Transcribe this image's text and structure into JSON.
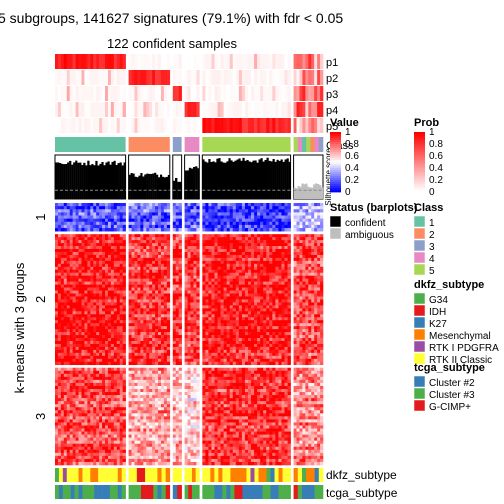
{
  "chart_data": {
    "type": "heatmap",
    "title": "5 subgroups, 141627 signatures (79.1%) with fdr < 0.05",
    "subtitle": "122 confident samples",
    "row_title_prefix": "k-means with 3 groups",
    "row_groups": [
      "1",
      "2",
      "3"
    ],
    "row_group_fractions": [
      0.11,
      0.51,
      0.38
    ],
    "column_groups": [
      {
        "class": "1",
        "fraction": 0.24
      },
      {
        "class": "2",
        "fraction": 0.14
      },
      {
        "class": "3",
        "fraction": 0.03
      },
      {
        "class": "4",
        "fraction": 0.05
      },
      {
        "class": "5",
        "fraction": 0.3
      },
      {
        "class": "ambiguous",
        "fraction": 0.1
      }
    ],
    "top_annotations": [
      "p1",
      "p2",
      "p3",
      "p4",
      "p5",
      "Class",
      "Silhouette score"
    ],
    "bottom_annotations": [
      "dkfz_subtype",
      "tcga_subtype"
    ],
    "heatmap_pattern": [
      [
        0.15,
        0.2,
        0.2,
        0.2,
        0.1,
        0.35
      ],
      [
        0.95,
        0.9,
        0.9,
        0.9,
        0.95,
        0.85
      ],
      [
        0.85,
        0.7,
        0.65,
        0.6,
        0.9,
        0.75
      ]
    ],
    "silhouette_profile": [
      0.82,
      0.55,
      0.45,
      0.7,
      0.88,
      0.3
    ],
    "silhouette_cutoff": 0.2,
    "value_legend": {
      "title": "Value",
      "ticks": [
        "1",
        "0.8",
        "0.6",
        "0.4",
        "0.2",
        "0"
      ]
    },
    "prob_legend": {
      "title": "Prob",
      "ticks": [
        "1",
        "0.8",
        "0.6",
        "0.4",
        "0.2",
        "0"
      ]
    },
    "status_legend": {
      "title": "Status (barplots)",
      "items": [
        {
          "label": "confident",
          "color": "#000000"
        },
        {
          "label": "ambiguous",
          "color": "#bebebe"
        }
      ]
    },
    "class_legend": {
      "title": "Class",
      "items": [
        {
          "label": "1",
          "color": "#66C2A5"
        },
        {
          "label": "2",
          "color": "#FC8D62"
        },
        {
          "label": "3",
          "color": "#8DA0CB"
        },
        {
          "label": "4",
          "color": "#E78AC3"
        },
        {
          "label": "5",
          "color": "#A6D854"
        }
      ]
    },
    "dkfz_legend": {
      "title": "dkfz_subtype",
      "items": [
        {
          "label": "G34",
          "color": "#4DAF4A"
        },
        {
          "label": "IDH",
          "color": "#E41A1C"
        },
        {
          "label": "K27",
          "color": "#377EB8"
        },
        {
          "label": "Mesenchymal",
          "color": "#FF7F00"
        },
        {
          "label": "RTK I PDGFRA",
          "color": "#984EA3"
        },
        {
          "label": "RTK II Classic",
          "color": "#FFFF33"
        }
      ]
    },
    "tcga_legend": {
      "title": "tcga_subtype",
      "items": [
        {
          "label": "Cluster #2",
          "color": "#377EB8"
        },
        {
          "label": "Cluster #3",
          "color": "#4DAF4A"
        },
        {
          "label": "G-CIMP+",
          "color": "#E41A1C"
        }
      ]
    },
    "colors": {
      "high": "#FF0000",
      "mid": "#FFFFFF",
      "low": "#0000FF"
    }
  }
}
